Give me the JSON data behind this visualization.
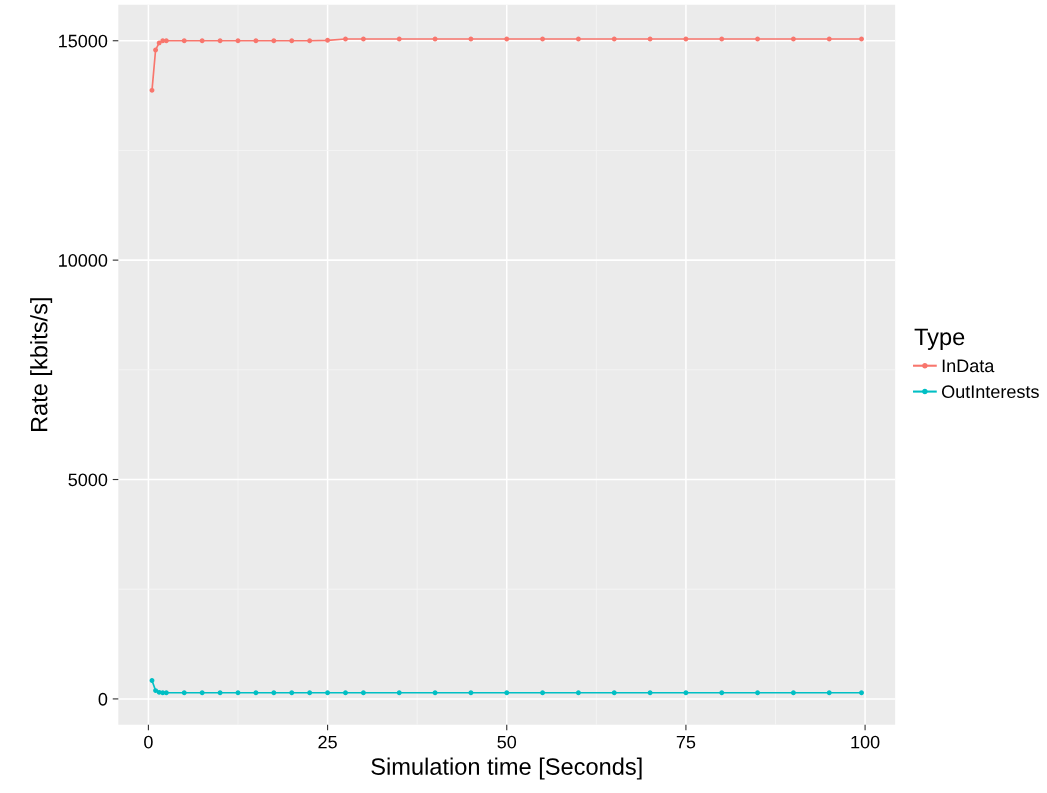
{
  "chart_data": {
    "type": "line",
    "xlabel": "Simulation time [Seconds]",
    "ylabel": "Rate [kbits/s]",
    "legend_title": "Type",
    "x": [
      0.5,
      1,
      1.5,
      2,
      2.5,
      5,
      7.5,
      10,
      12.5,
      15,
      17.5,
      20,
      22.5,
      25,
      27.5,
      30,
      35,
      40,
      45,
      50,
      55,
      60,
      65,
      70,
      75,
      80,
      85,
      90,
      95,
      99.5
    ],
    "series": [
      {
        "name": "InData",
        "color": "#f8766d",
        "values": [
          13870,
          14790,
          14950,
          15000,
          15000,
          15000,
          15000,
          15000,
          15000,
          15000,
          15000,
          15000,
          15000,
          15010,
          15040,
          15040,
          15040,
          15040,
          15040,
          15040,
          15040,
          15040,
          15040,
          15040,
          15040,
          15040,
          15040,
          15040,
          15040,
          15040
        ]
      },
      {
        "name": "OutInterests",
        "color": "#00bfc4",
        "values": [
          420,
          190,
          150,
          140,
          140,
          140,
          140,
          140,
          140,
          140,
          140,
          140,
          140,
          140,
          140,
          140,
          140,
          140,
          140,
          140,
          140,
          140,
          140,
          140,
          140,
          140,
          140,
          140,
          140,
          140
        ]
      }
    ],
    "xlim": [
      -4.2,
      104.2
    ],
    "ylim": [
      -590,
      15820
    ],
    "xticks": [
      0,
      25,
      50,
      75,
      100
    ],
    "yticks": [
      0,
      5000,
      10000,
      15000
    ],
    "grid": true,
    "legend": "right",
    "marker": "circle",
    "line_style": "solid"
  }
}
